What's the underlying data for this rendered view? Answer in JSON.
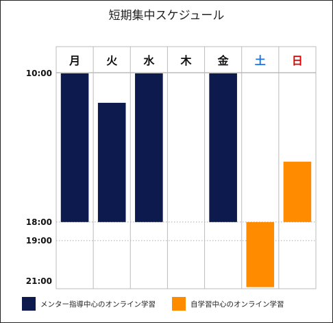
{
  "chart_data": {
    "type": "bar",
    "title": "短期集中スケジュール",
    "categories": [
      "月",
      "火",
      "水",
      "木",
      "金",
      "土",
      "日"
    ],
    "category_colors": [
      "#111111",
      "#111111",
      "#111111",
      "#111111",
      "#111111",
      "#1a73e8",
      "#e00000"
    ],
    "y_ticks": [
      "10:00",
      "18:00",
      "19:00",
      "21:00"
    ],
    "y_tick_hours": [
      10,
      18,
      19,
      21
    ],
    "ylim": [
      "10:00",
      "21:00"
    ],
    "series": [
      {
        "name": "メンター指導中心のオンライン学習",
        "color": "#0d1a4d",
        "bars": [
          {
            "day": "月",
            "start": "10:00",
            "end": "18:00"
          },
          {
            "day": "火",
            "start": "11:35",
            "end": "18:00"
          },
          {
            "day": "水",
            "start": "10:00",
            "end": "18:00"
          },
          {
            "day": "金",
            "start": "10:00",
            "end": "18:00"
          }
        ]
      },
      {
        "name": "自学習中心のオンライン学習",
        "color": "#ff8c00",
        "bars": [
          {
            "day": "土",
            "start": "18:00",
            "end": "21:30"
          },
          {
            "day": "日",
            "start": "14:45",
            "end": "18:00"
          }
        ]
      }
    ]
  }
}
